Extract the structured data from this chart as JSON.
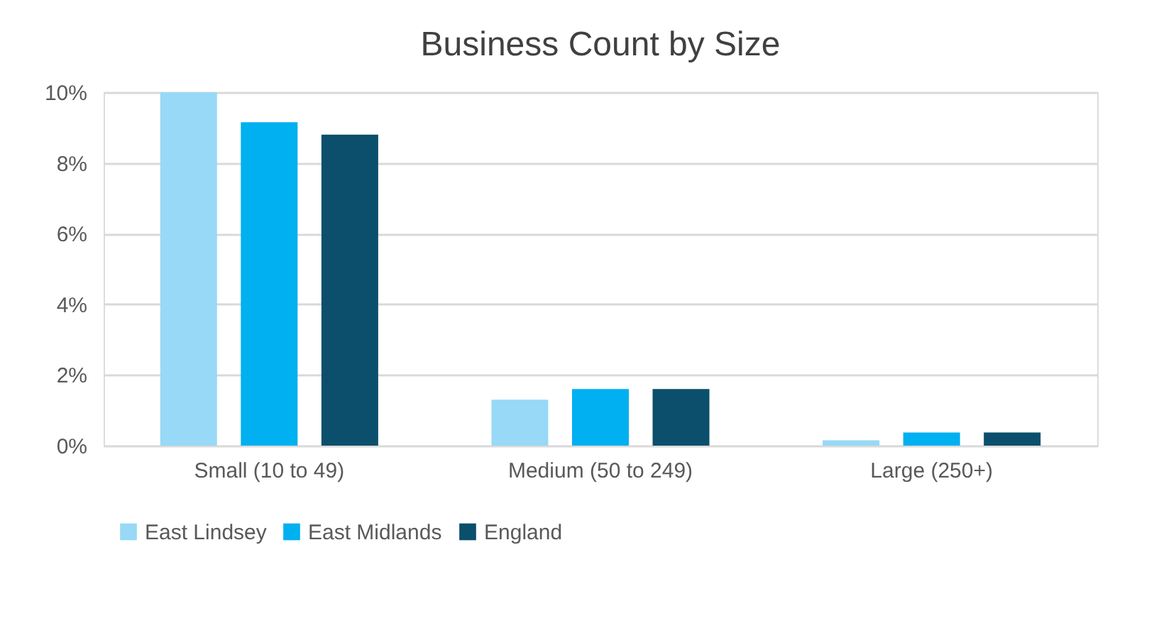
{
  "chart_data": {
    "type": "bar",
    "title": "Business Count by Size",
    "categories": [
      "Small (10 to 49)",
      "Medium (50 to 249)",
      "Large (250+)"
    ],
    "series": [
      {
        "name": "East Lindsey",
        "color": "#97d9f6",
        "values": [
          10.0,
          1.3,
          0.15
        ]
      },
      {
        "name": "East Midlands",
        "color": "#00b0f0",
        "values": [
          9.15,
          1.6,
          0.37
        ]
      },
      {
        "name": "England",
        "color": "#0b4f6c",
        "values": [
          8.8,
          1.6,
          0.37
        ]
      }
    ],
    "ylim": [
      0,
      10
    ],
    "yticks": [
      {
        "value": 0,
        "label": "0%"
      },
      {
        "value": 2,
        "label": "2%"
      },
      {
        "value": 4,
        "label": "4%"
      },
      {
        "value": 6,
        "label": "6%"
      },
      {
        "value": 8,
        "label": "8%"
      },
      {
        "value": 10,
        "label": "10%"
      }
    ],
    "grid": "y",
    "legend": "bottom"
  }
}
